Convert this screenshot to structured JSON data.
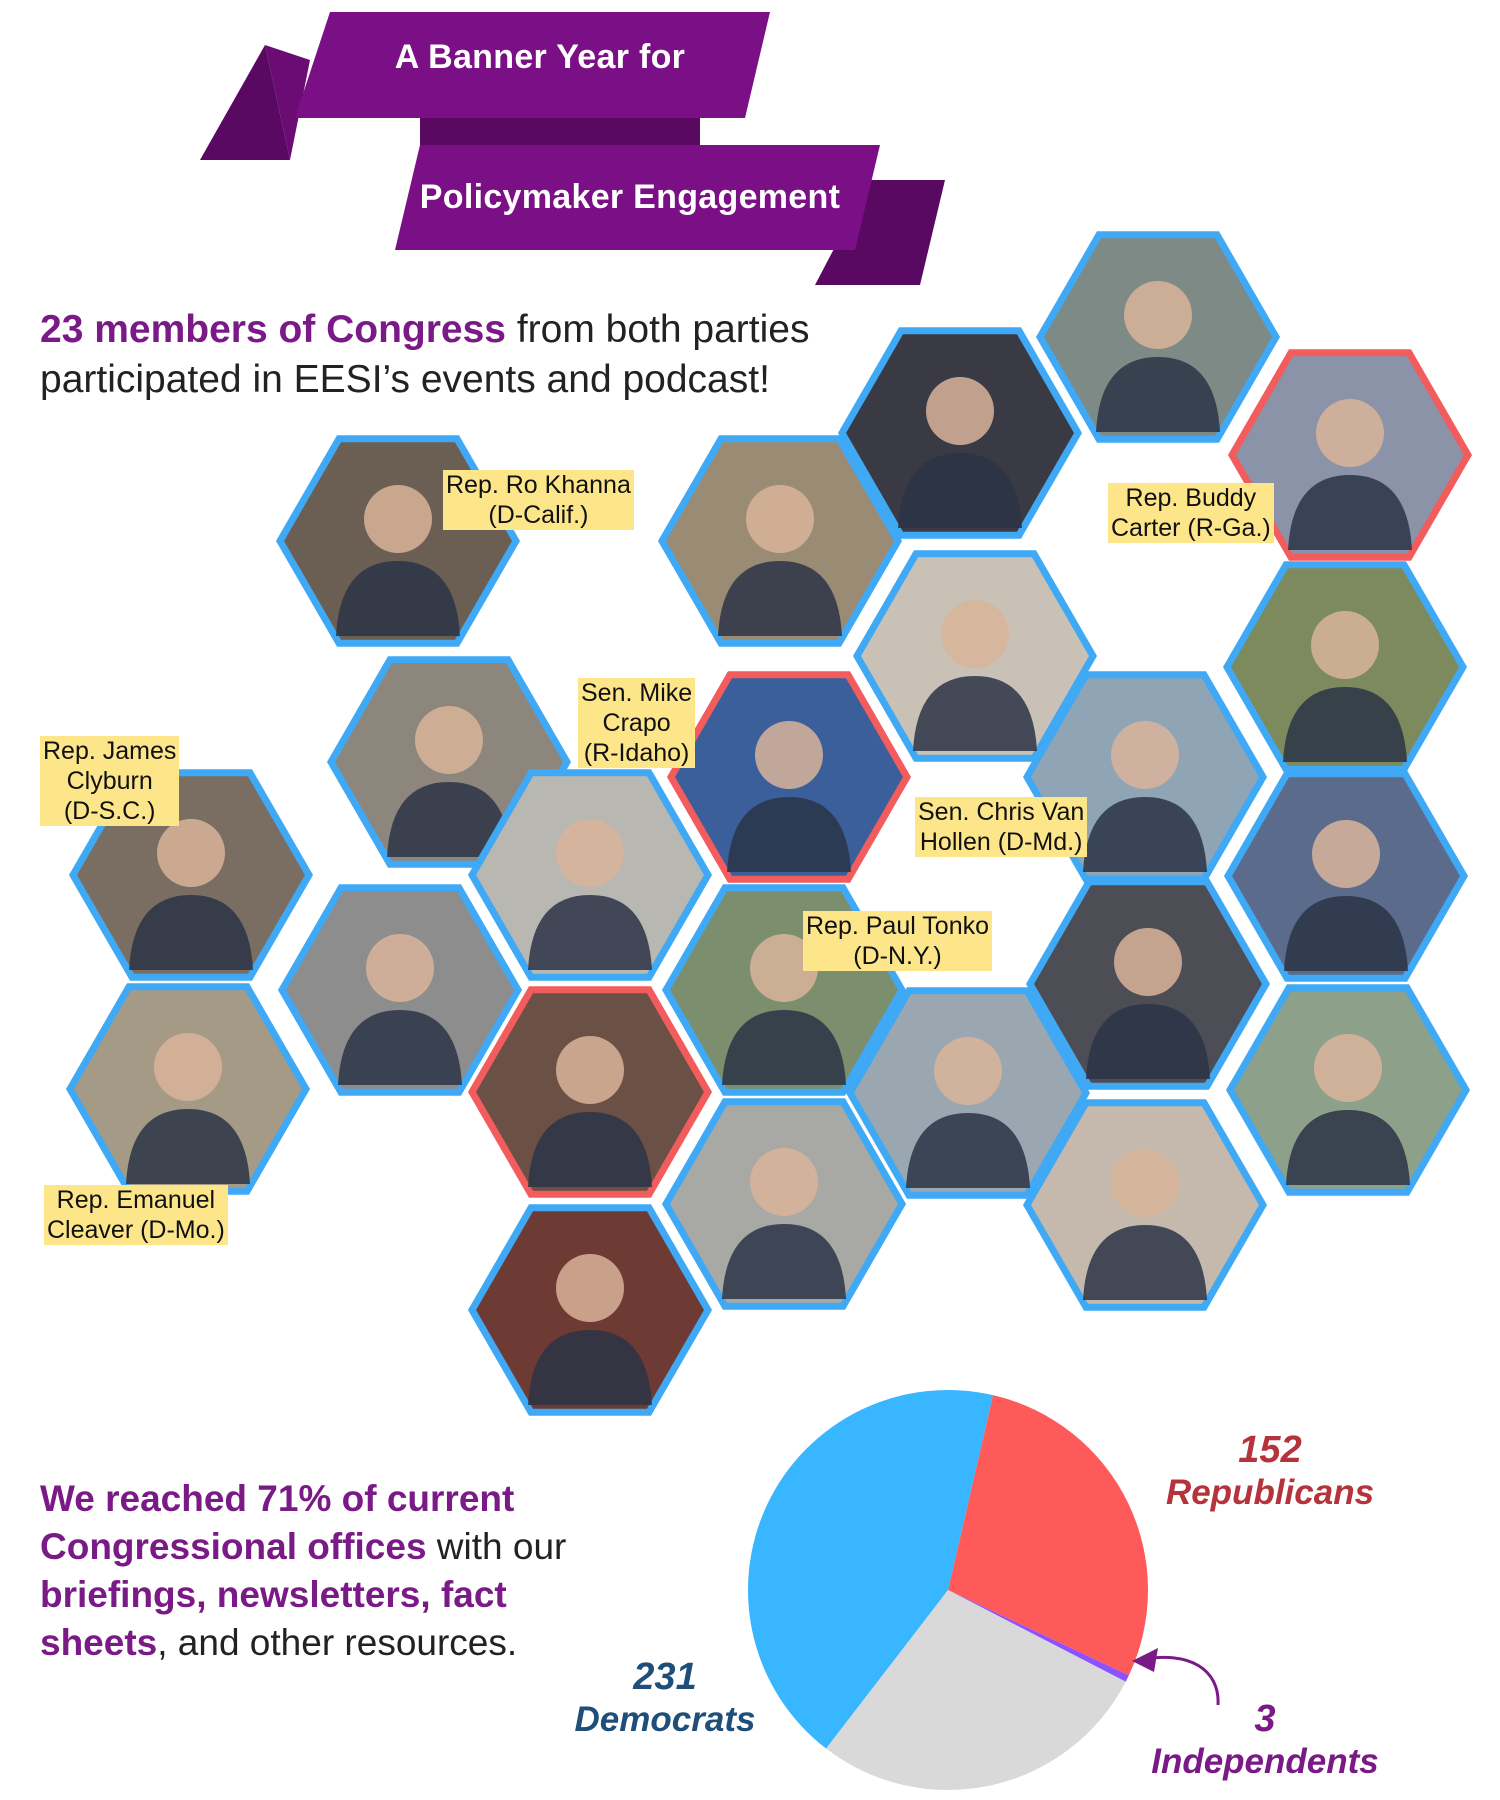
{
  "banner": {
    "line1": "A Banner Year for",
    "line2": "Policymaker Engagement",
    "color_primary": "#7b0f85",
    "color_dark": "#5a0963"
  },
  "intro": {
    "highlight": "23 members of Congress",
    "rest": " from both parties participated in EESI’s events and podcast!"
  },
  "members": [
    {
      "name_line1": "Rep. Ro Khanna",
      "name_line2": "(D-Calif.)"
    },
    {
      "name_line1": "Rep. Buddy",
      "name_line2": "Carter (R-Ga.)"
    },
    {
      "name_line1": "Sen. Mike",
      "name_line2": "Crapo",
      "name_line3": "(R-Idaho)"
    },
    {
      "name_line1": "Rep. James",
      "name_line2": "Clyburn",
      "name_line3": "(D-S.C.)"
    },
    {
      "name_line1": "Sen. Chris Van",
      "name_line2": "Hollen (D-Md.)"
    },
    {
      "name_line1": "Rep. Paul Tonko",
      "name_line2": "(D-N.Y.)"
    },
    {
      "name_line1": "Rep. Emanuel",
      "name_line2": "Cleaver (D-Mo.)"
    }
  ],
  "hex_colors": {
    "democrat_border": "#3fa9f5",
    "republican_border": "#f25c5c"
  },
  "reach": {
    "part1": "We reached 71% of current Congressional offices",
    "part2": " with our ",
    "part3": "briefings, newsletters, fact sheets",
    "part4": ", and other resources."
  },
  "chart_data": {
    "type": "pie",
    "series": [
      {
        "name": "Democrats",
        "value": 231,
        "color": "#38b6ff"
      },
      {
        "name": "Republicans",
        "value": 152,
        "color": "#ff5a5a"
      },
      {
        "name": "Independents",
        "value": 3,
        "color": "#8c52ff"
      }
    ],
    "remaining_color": "#d9d9d9",
    "labels": {
      "democrats_value": "231",
      "democrats_name": "Democrats",
      "republicans_value": "152",
      "republicans_name": "Republicans",
      "independents_value": "3",
      "independents_name": "Independents"
    },
    "label_colors": {
      "democrats": "#1f4e79",
      "republicans": "#b5333b",
      "independents": "#7a1a86"
    }
  }
}
